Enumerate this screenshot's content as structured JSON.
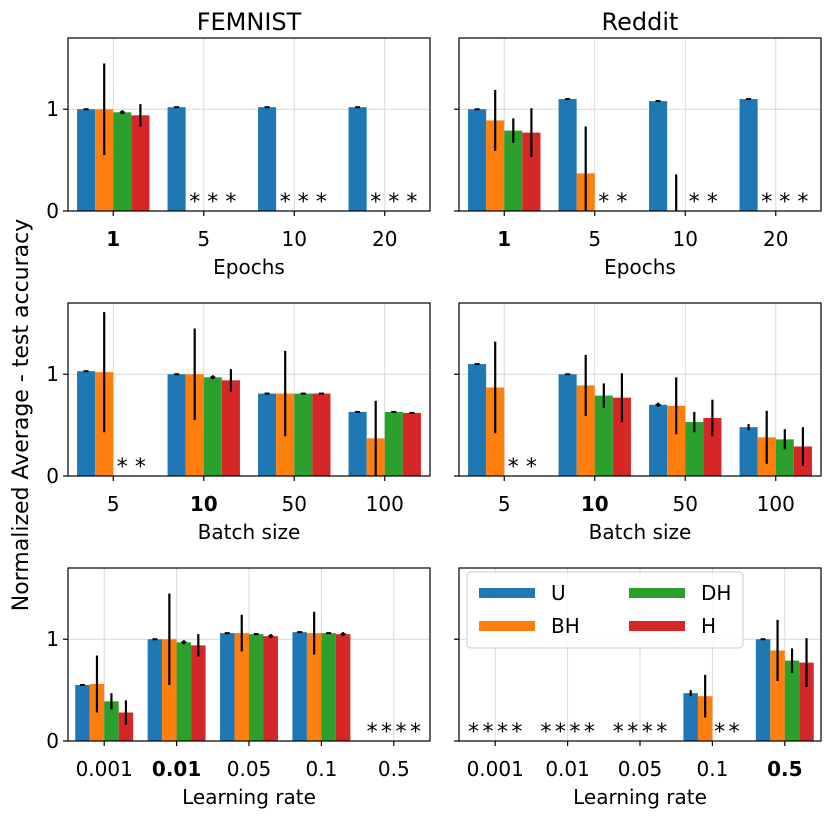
{
  "figure": {
    "ylabel": "Normalized Average - test accuracy",
    "legend": {
      "entries": [
        {
          "name": "U",
          "color": "#1f77b4"
        },
        {
          "name": "BH",
          "color": "#ff7f0e"
        },
        {
          "name": "DH",
          "color": "#2ca02c"
        },
        {
          "name": "H",
          "color": "#d62728"
        }
      ],
      "location": "upper-left of bottom-right panel"
    },
    "series_colors": {
      "U": "#1f77b4",
      "BH": "#ff7f0e",
      "DH": "#2ca02c",
      "H": "#d62728"
    },
    "missing_marker": "*"
  },
  "chart_data": [
    {
      "type": "bar",
      "row": 0,
      "col": 0,
      "title": "FEMNIST",
      "xlabel": "Epochs",
      "ylabel": "",
      "ylim": [
        0,
        1.7
      ],
      "yticks": [
        0,
        1
      ],
      "grid": true,
      "categories": [
        "1",
        "5",
        "10",
        "20"
      ],
      "bold_category": "1",
      "series": [
        {
          "name": "U",
          "values": [
            1.0,
            1.02,
            1.02,
            1.02
          ],
          "errors": [
            0.005,
            0.005,
            0.005,
            0.005
          ]
        },
        {
          "name": "BH",
          "values": [
            1.0,
            null,
            null,
            null
          ],
          "errors": [
            0.45,
            0,
            0,
            0
          ]
        },
        {
          "name": "DH",
          "values": [
            0.97,
            null,
            null,
            null
          ],
          "errors": [
            0.02,
            0,
            0,
            0
          ]
        },
        {
          "name": "H",
          "values": [
            0.94,
            null,
            null,
            null
          ],
          "errors": [
            0.11,
            0,
            0,
            0
          ]
        }
      ]
    },
    {
      "type": "bar",
      "row": 0,
      "col": 1,
      "title": "Reddit",
      "xlabel": "Epochs",
      "ylabel": "",
      "ylim": [
        0,
        1.7
      ],
      "yticks": [
        0,
        1
      ],
      "grid": true,
      "categories": [
        "1",
        "5",
        "10",
        "20"
      ],
      "bold_category": "1",
      "series": [
        {
          "name": "U",
          "values": [
            1.0,
            1.1,
            1.08,
            1.1
          ],
          "errors": [
            0.005,
            0.01,
            0.01,
            0.005
          ]
        },
        {
          "name": "BH",
          "values": [
            0.89,
            0.37,
            0.0,
            null
          ],
          "errors": [
            0.3,
            0.46,
            0.36,
            0
          ]
        },
        {
          "name": "DH",
          "values": [
            0.79,
            null,
            null,
            null
          ],
          "errors": [
            0.12,
            0,
            0,
            0
          ]
        },
        {
          "name": "H",
          "values": [
            0.77,
            null,
            null,
            null
          ],
          "errors": [
            0.24,
            0,
            0,
            0
          ]
        }
      ]
    },
    {
      "type": "bar",
      "row": 1,
      "col": 0,
      "title": "",
      "xlabel": "Batch size",
      "ylabel": "",
      "ylim": [
        0,
        1.7
      ],
      "yticks": [
        0,
        1
      ],
      "grid": true,
      "categories": [
        "5",
        "10",
        "50",
        "100"
      ],
      "bold_category": "10",
      "series": [
        {
          "name": "U",
          "values": [
            1.03,
            1.0,
            0.81,
            0.63
          ],
          "errors": [
            0.005,
            0.005,
            0.005,
            0.005
          ]
        },
        {
          "name": "BH",
          "values": [
            1.02,
            1.0,
            0.81,
            0.37
          ],
          "errors": [
            0.59,
            0.45,
            0.42,
            0.37
          ]
        },
        {
          "name": "DH",
          "values": [
            null,
            0.97,
            0.81,
            0.63
          ],
          "errors": [
            0,
            0.02,
            0.005,
            0.005
          ]
        },
        {
          "name": "H",
          "values": [
            null,
            0.94,
            0.81,
            0.62
          ],
          "errors": [
            0,
            0.11,
            0.005,
            0.005
          ]
        }
      ]
    },
    {
      "type": "bar",
      "row": 1,
      "col": 1,
      "title": "",
      "xlabel": "Batch size",
      "ylabel": "",
      "ylim": [
        0,
        1.7
      ],
      "yticks": [
        0,
        1
      ],
      "grid": true,
      "categories": [
        "5",
        "10",
        "50",
        "100"
      ],
      "bold_category": "10",
      "series": [
        {
          "name": "U",
          "values": [
            1.1,
            1.0,
            0.7,
            0.48
          ],
          "errors": [
            0.005,
            0.005,
            0.02,
            0.03
          ]
        },
        {
          "name": "BH",
          "values": [
            0.87,
            0.89,
            0.69,
            0.38
          ],
          "errors": [
            0.45,
            0.3,
            0.28,
            0.26
          ]
        },
        {
          "name": "DH",
          "values": [
            null,
            0.79,
            0.53,
            0.36
          ],
          "errors": [
            0,
            0.12,
            0.1,
            0.1
          ]
        },
        {
          "name": "H",
          "values": [
            null,
            0.77,
            0.57,
            0.29
          ],
          "errors": [
            0,
            0.24,
            0.18,
            0.19
          ]
        }
      ]
    },
    {
      "type": "bar",
      "row": 2,
      "col": 0,
      "title": "",
      "xlabel": "Learning rate",
      "ylabel": "",
      "ylim": [
        0,
        1.7
      ],
      "yticks": [
        0,
        1
      ],
      "grid": true,
      "categories": [
        "0.001",
        "0.01",
        "0.05",
        "0.1",
        "0.5"
      ],
      "bold_category": "0.01",
      "series": [
        {
          "name": "U",
          "values": [
            0.55,
            1.0,
            1.06,
            1.07,
            null
          ],
          "errors": [
            0.005,
            0.005,
            0.005,
            0.005,
            0
          ]
        },
        {
          "name": "BH",
          "values": [
            0.56,
            1.0,
            1.06,
            1.06,
            null
          ],
          "errors": [
            0.28,
            0.45,
            0.18,
            0.21,
            0
          ]
        },
        {
          "name": "DH",
          "values": [
            0.39,
            0.97,
            1.05,
            1.06,
            null
          ],
          "errors": [
            0.08,
            0.02,
            0.01,
            0.005,
            0
          ]
        },
        {
          "name": "H",
          "values": [
            0.28,
            0.94,
            1.03,
            1.05,
            null
          ],
          "errors": [
            0.12,
            0.11,
            0.02,
            0.02,
            0
          ]
        }
      ]
    },
    {
      "type": "bar",
      "row": 2,
      "col": 1,
      "title": "",
      "xlabel": "Learning rate",
      "ylabel": "",
      "ylim": [
        0,
        1.7
      ],
      "yticks": [
        0,
        1
      ],
      "grid": true,
      "categories": [
        "0.001",
        "0.01",
        "0.05",
        "0.1",
        "0.5"
      ],
      "bold_category": "0.5",
      "series": [
        {
          "name": "U",
          "values": [
            null,
            null,
            null,
            0.47,
            1.0
          ],
          "errors": [
            0,
            0,
            0,
            0.03,
            0.005
          ]
        },
        {
          "name": "BH",
          "values": [
            null,
            null,
            null,
            0.44,
            0.89
          ],
          "errors": [
            0,
            0,
            0,
            0.21,
            0.3
          ]
        },
        {
          "name": "DH",
          "values": [
            null,
            null,
            null,
            null,
            0.79
          ],
          "errors": [
            0,
            0,
            0,
            0,
            0.12
          ]
        },
        {
          "name": "H",
          "values": [
            null,
            null,
            null,
            null,
            0.77
          ],
          "errors": [
            0,
            0,
            0,
            0,
            0.24
          ]
        }
      ]
    }
  ]
}
